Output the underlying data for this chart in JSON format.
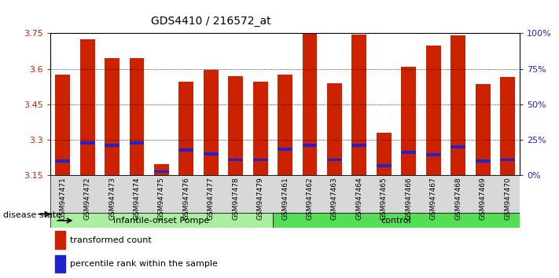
{
  "title": "GDS4410 / 216572_at",
  "samples": [
    "GSM947471",
    "GSM947472",
    "GSM947473",
    "GSM947474",
    "GSM947475",
    "GSM947476",
    "GSM947477",
    "GSM947478",
    "GSM947479",
    "GSM947461",
    "GSM947462",
    "GSM947463",
    "GSM947464",
    "GSM947465",
    "GSM947466",
    "GSM947467",
    "GSM947468",
    "GSM947469",
    "GSM947470"
  ],
  "red_values": [
    3.575,
    3.725,
    3.645,
    3.645,
    3.195,
    3.545,
    3.595,
    3.57,
    3.545,
    3.575,
    3.75,
    3.54,
    3.745,
    3.33,
    3.61,
    3.7,
    3.74,
    3.535,
    3.565
  ],
  "blue_values": [
    3.21,
    3.285,
    3.275,
    3.285,
    3.165,
    3.255,
    3.24,
    3.215,
    3.215,
    3.26,
    3.275,
    3.215,
    3.275,
    3.19,
    3.245,
    3.235,
    3.27,
    3.21,
    3.215
  ],
  "y_min": 3.15,
  "y_max": 3.75,
  "y_ticks_left": [
    3.15,
    3.3,
    3.45,
    3.6,
    3.75
  ],
  "y_ticks_right": [
    0,
    25,
    50,
    75,
    100
  ],
  "group_labels": [
    "infantile-onset Pompe",
    "control"
  ],
  "group_counts": [
    9,
    10
  ],
  "bar_color": "#CC2200",
  "blue_color": "#2222CC",
  "baseline": 3.15,
  "disease_state_label": "disease state",
  "legend_items": [
    "transformed count",
    "percentile rank within the sample"
  ],
  "bar_width": 0.6,
  "grid_lines": [
    3.3,
    3.45,
    3.6
  ]
}
